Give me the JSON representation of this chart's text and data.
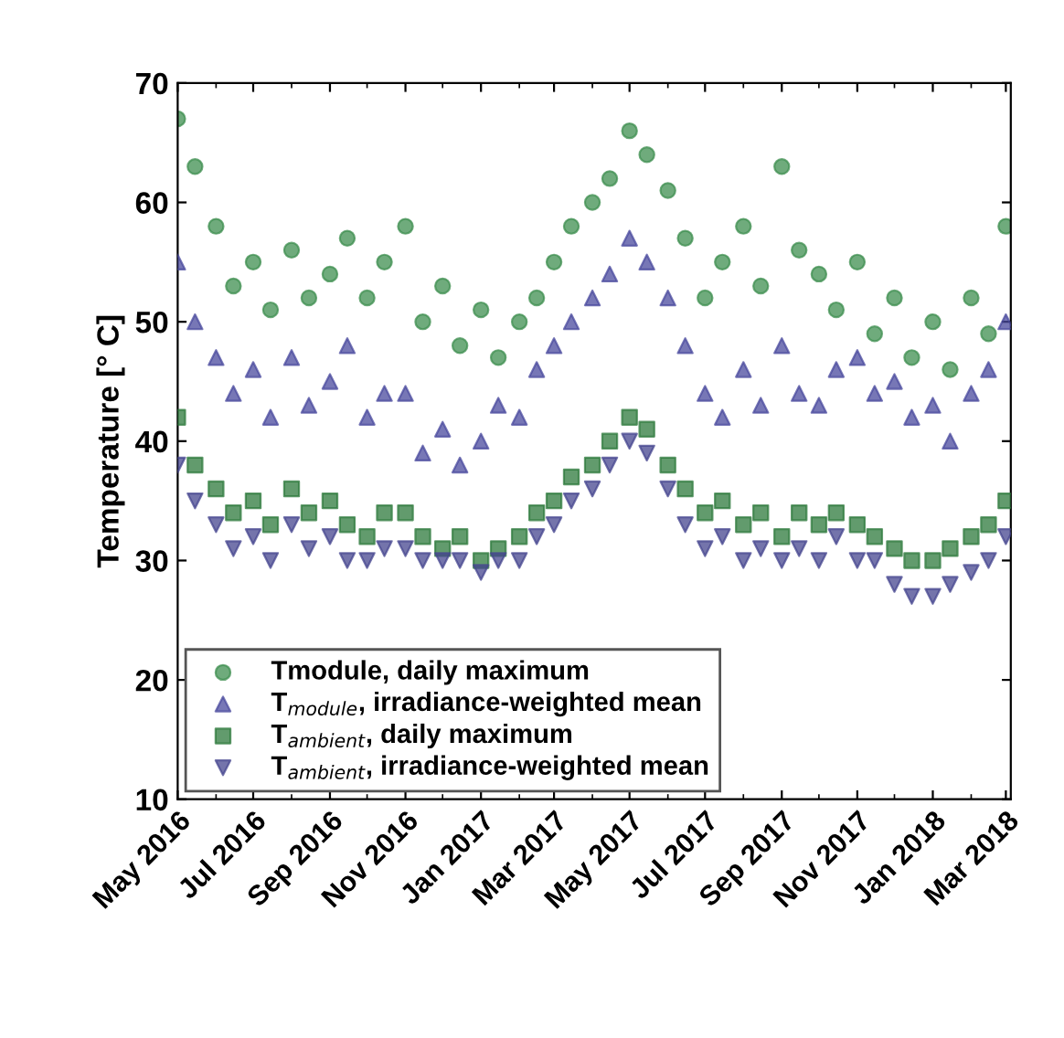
{
  "chart_data": {
    "type": "scatter",
    "ylabel": "Temperature [° C]",
    "x": [
      "2016-05-01",
      "2016-05-15",
      "2016-06-01",
      "2016-06-15",
      "2016-07-01",
      "2016-07-15",
      "2016-08-01",
      "2016-08-15",
      "2016-09-01",
      "2016-09-15",
      "2016-10-01",
      "2016-10-15",
      "2016-11-01",
      "2016-11-15",
      "2016-12-01",
      "2016-12-15",
      "2017-01-01",
      "2017-01-15",
      "2017-02-01",
      "2017-02-15",
      "2017-03-01",
      "2017-03-15",
      "2017-04-01",
      "2017-04-15",
      "2017-05-01",
      "2017-05-15",
      "2017-06-01",
      "2017-06-15",
      "2017-07-01",
      "2017-07-15",
      "2017-08-01",
      "2017-08-15",
      "2017-09-01",
      "2017-09-15",
      "2017-10-01",
      "2017-10-15",
      "2017-11-01",
      "2017-11-15",
      "2017-12-01",
      "2017-12-15",
      "2018-01-01",
      "2018-01-15",
      "2018-02-01",
      "2018-02-15",
      "2018-03-01"
    ],
    "series": [
      {
        "name": "Tmodule, daily maximum",
        "color": "#3f8f50",
        "marker": "circle",
        "values": [
          67,
          63,
          58,
          53,
          55,
          51,
          56,
          52,
          54,
          57,
          52,
          55,
          58,
          50,
          53,
          48,
          51,
          47,
          50,
          52,
          55,
          58,
          60,
          62,
          66,
          64,
          61,
          57,
          52,
          55,
          58,
          53,
          63,
          56,
          54,
          51,
          55,
          49,
          52,
          47,
          50,
          46,
          52,
          49,
          58
        ]
      },
      {
        "name": "T$_{module}$, irradiance-weighted mean",
        "color": "#4a4a9e",
        "marker": "triangle",
        "values": [
          55,
          50,
          47,
          44,
          46,
          42,
          47,
          43,
          45,
          48,
          42,
          44,
          44,
          39,
          41,
          38,
          40,
          43,
          42,
          46,
          48,
          50,
          52,
          54,
          57,
          55,
          52,
          48,
          44,
          42,
          46,
          43,
          48,
          44,
          43,
          46,
          47,
          44,
          45,
          42,
          43,
          40,
          44,
          46,
          50
        ]
      },
      {
        "name": "T$_{ambient}$, daily maximum",
        "color": "#2e7a3c",
        "marker": "square",
        "values": [
          42,
          38,
          36,
          34,
          35,
          33,
          36,
          34,
          35,
          33,
          32,
          34,
          34,
          32,
          31,
          32,
          30,
          31,
          32,
          34,
          35,
          37,
          38,
          40,
          42,
          41,
          38,
          36,
          34,
          35,
          33,
          34,
          32,
          34,
          33,
          34,
          33,
          32,
          31,
          30,
          30,
          31,
          32,
          33,
          35
        ]
      },
      {
        "name": "T$_{ambient}$, irradiance-weighted mean",
        "color": "#45458f",
        "marker": "triangle_down",
        "values": [
          38,
          35,
          33,
          31,
          32,
          30,
          33,
          31,
          32,
          30,
          30,
          31,
          31,
          30,
          30,
          30,
          29,
          30,
          30,
          32,
          33,
          35,
          36,
          38,
          40,
          39,
          36,
          33,
          31,
          32,
          30,
          31,
          30,
          31,
          30,
          32,
          30,
          30,
          28,
          27,
          27,
          28,
          29,
          30,
          32
        ]
      }
    ],
    "xlim": [
      "2016-05-01",
      "2018-03-05"
    ],
    "xticks": [
      {
        "value": "2016-05-01",
        "label": "May 2016"
      },
      {
        "value": "2016-07-01",
        "label": "Jul 2016"
      },
      {
        "value": "2016-09-01",
        "label": "Sep 2016"
      },
      {
        "value": "2016-11-01",
        "label": "Nov 2016"
      },
      {
        "value": "2017-01-01",
        "label": "Jan 2017"
      },
      {
        "value": "2017-03-01",
        "label": "Mar 2017"
      },
      {
        "value": "2017-05-01",
        "label": "May 2017"
      },
      {
        "value": "2017-07-01",
        "label": "Jul 2017"
      },
      {
        "value": "2017-09-01",
        "label": "Sep 2017"
      },
      {
        "value": "2017-11-01",
        "label": "Nov 2017"
      },
      {
        "value": "2018-01-01",
        "label": "Jan 2018"
      },
      {
        "value": "2018-03-01",
        "label": "Mar 2018"
      }
    ],
    "ylim": [
      10,
      70
    ],
    "yticks": [
      10,
      20,
      30,
      40,
      50,
      60,
      70
    ],
    "legend": "bottom left",
    "grid": false
  }
}
